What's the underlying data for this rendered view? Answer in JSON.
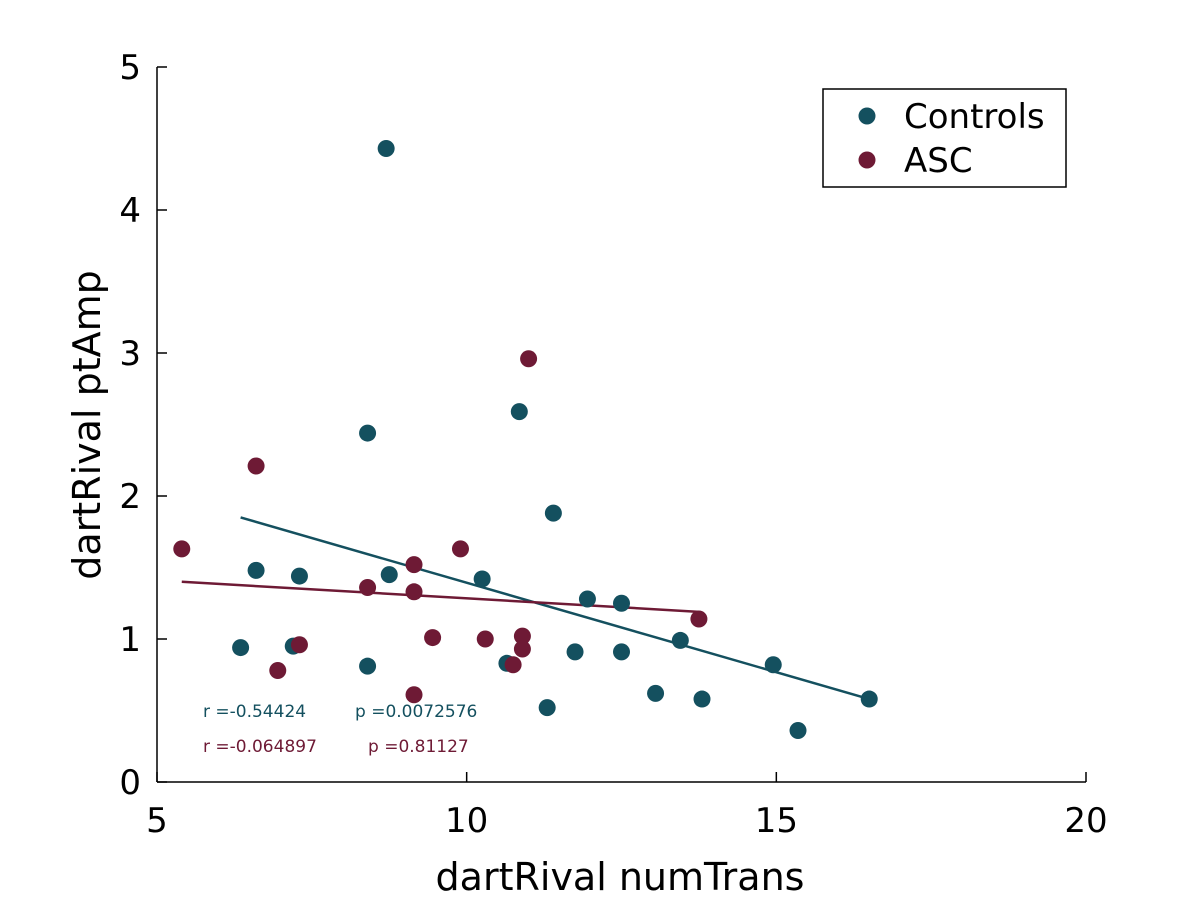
{
  "chart_data": {
    "type": "scatter",
    "title": "",
    "xlabel": "dartRival numTrans",
    "ylabel": "dartRival ptAmp",
    "xlim": [
      5,
      20
    ],
    "ylim": [
      0,
      5
    ],
    "xticks": [
      5,
      10,
      15,
      20
    ],
    "yticks": [
      0,
      1,
      2,
      3,
      4,
      5
    ],
    "grid": false,
    "legend_position": "top-right",
    "series": [
      {
        "name": "Controls",
        "color": "#14505f",
        "points": [
          {
            "x": 8.7,
            "y": 4.43
          },
          {
            "x": 10.85,
            "y": 2.59
          },
          {
            "x": 8.4,
            "y": 2.44
          },
          {
            "x": 11.4,
            "y": 1.88
          },
          {
            "x": 6.6,
            "y": 1.48
          },
          {
            "x": 7.3,
            "y": 1.44
          },
          {
            "x": 8.75,
            "y": 1.45
          },
          {
            "x": 10.25,
            "y": 1.42
          },
          {
            "x": 11.95,
            "y": 1.28
          },
          {
            "x": 12.5,
            "y": 1.25
          },
          {
            "x": 13.45,
            "y": 0.99
          },
          {
            "x": 6.35,
            "y": 0.94
          },
          {
            "x": 7.2,
            "y": 0.95
          },
          {
            "x": 11.75,
            "y": 0.91
          },
          {
            "x": 12.5,
            "y": 0.91
          },
          {
            "x": 10.65,
            "y": 0.83
          },
          {
            "x": 8.4,
            "y": 0.81
          },
          {
            "x": 14.95,
            "y": 0.82
          },
          {
            "x": 13.05,
            "y": 0.62
          },
          {
            "x": 13.8,
            "y": 0.58
          },
          {
            "x": 16.5,
            "y": 0.58
          },
          {
            "x": 11.3,
            "y": 0.52
          },
          {
            "x": 15.35,
            "y": 0.36
          }
        ],
        "fit": [
          {
            "x": 6.35,
            "y": 1.85
          },
          {
            "x": 16.5,
            "y": 0.58
          }
        ],
        "stats": {
          "r": "r =-0.54424",
          "p": "p =0.0072576"
        }
      },
      {
        "name": "ASC",
        "color": "#6e1a35",
        "points": [
          {
            "x": 11.0,
            "y": 2.96
          },
          {
            "x": 6.6,
            "y": 2.21
          },
          {
            "x": 5.4,
            "y": 1.63
          },
          {
            "x": 9.9,
            "y": 1.63
          },
          {
            "x": 9.15,
            "y": 1.52
          },
          {
            "x": 8.4,
            "y": 1.36
          },
          {
            "x": 9.15,
            "y": 1.33
          },
          {
            "x": 13.75,
            "y": 1.14
          },
          {
            "x": 9.45,
            "y": 1.01
          },
          {
            "x": 10.3,
            "y": 1.0
          },
          {
            "x": 10.9,
            "y": 1.02
          },
          {
            "x": 7.3,
            "y": 0.96
          },
          {
            "x": 10.9,
            "y": 0.93
          },
          {
            "x": 10.75,
            "y": 0.82
          },
          {
            "x": 6.95,
            "y": 0.78
          },
          {
            "x": 9.15,
            "y": 0.61
          }
        ],
        "fit": [
          {
            "x": 5.4,
            "y": 1.4
          },
          {
            "x": 13.75,
            "y": 1.19
          }
        ],
        "stats": {
          "r": "r =-0.064897",
          "p": "p =0.81127"
        }
      }
    ]
  }
}
